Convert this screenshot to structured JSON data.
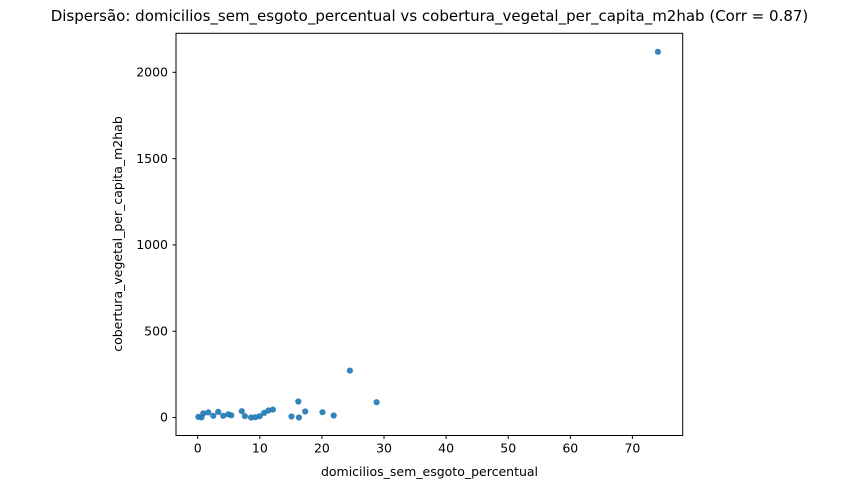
{
  "chart_data": {
    "type": "scatter",
    "title": "Dispersão: domicilios_sem_esgoto_percentual vs cobertura_vegetal_per_capita_m2hab (Corr = 0.87)",
    "xlabel": "domicilios_sem_esgoto_percentual",
    "ylabel": "cobertura_vegetal_per_capita_m2hab",
    "correlation": 0.87,
    "xlim": [
      -3.5,
      78.1
    ],
    "ylim": [
      -104,
      2226
    ],
    "xticks": [
      0,
      10,
      20,
      30,
      40,
      50,
      60,
      70
    ],
    "yticks": [
      0,
      500,
      1000,
      1500,
      2000
    ],
    "grid": false,
    "legend": "none",
    "marker_color": "#1f77b4",
    "background_color": "#ffffff",
    "spine_color": "#000000",
    "points": [
      [
        0.1,
        4
      ],
      [
        0.6,
        1
      ],
      [
        0.9,
        24
      ],
      [
        1.7,
        30
      ],
      [
        2.5,
        10
      ],
      [
        3.3,
        33
      ],
      [
        4.1,
        10
      ],
      [
        4.9,
        19
      ],
      [
        5.4,
        13
      ],
      [
        7.1,
        37
      ],
      [
        7.6,
        8
      ],
      [
        8.6,
        0
      ],
      [
        9.3,
        2
      ],
      [
        10.0,
        8
      ],
      [
        10.7,
        27
      ],
      [
        11.4,
        41
      ],
      [
        12.1,
        46
      ],
      [
        15.1,
        6
      ],
      [
        16.2,
        93
      ],
      [
        16.3,
        0
      ],
      [
        17.3,
        35
      ],
      [
        20.1,
        31
      ],
      [
        21.9,
        12
      ],
      [
        24.5,
        272
      ],
      [
        28.8,
        89
      ],
      [
        74.1,
        2119
      ]
    ]
  }
}
